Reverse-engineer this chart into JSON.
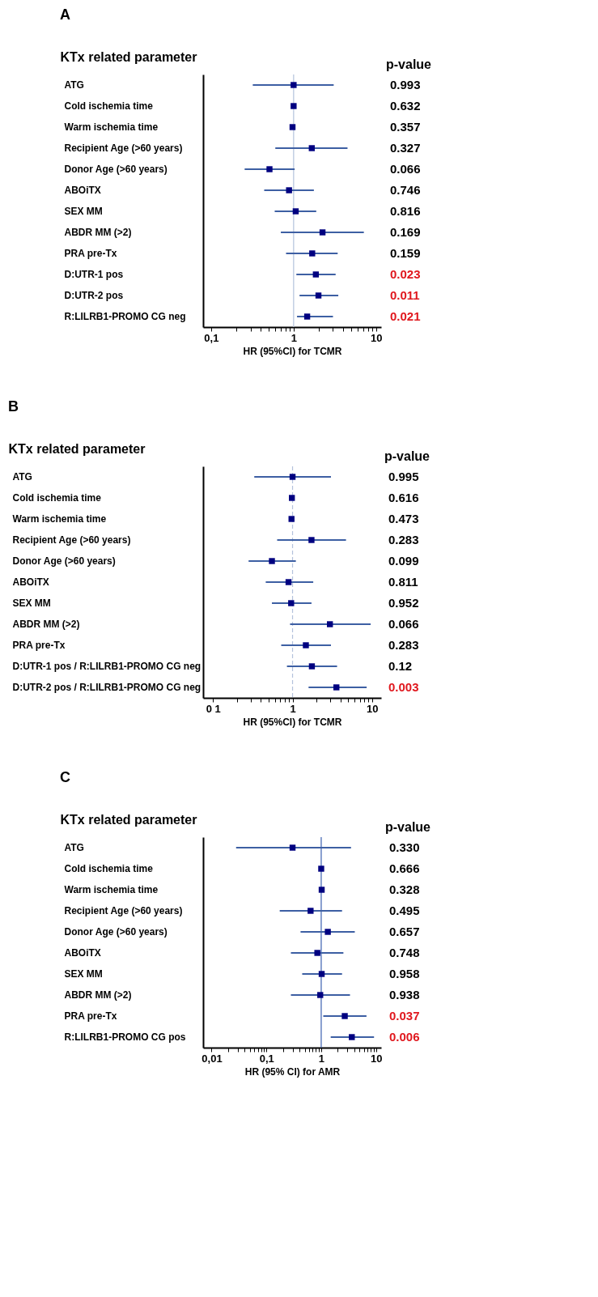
{
  "chart_data": [
    {
      "type": "scatter",
      "title": "A",
      "orientation": "horizontal",
      "log": "x",
      "grid": false,
      "legend": false,
      "marker": "square",
      "categories": [
        "ATG",
        "Cold ischemia time",
        "Warm ischemia time",
        "Recipient Age (>60 years)",
        "Donor Age (>60 years)",
        "ABOiTX",
        "SEX MM",
        "ABDR MM (>2)",
        "PRA pre-Tx",
        "D:UTR-1 pos",
        "D:UTR-2 pos",
        "R:LILRB1-PROMO CG neg"
      ],
      "series": [
        {
          "color": "#000080",
          "values": [
            1.0,
            1.0,
            0.97,
            1.66,
            0.51,
            0.88,
            1.06,
            2.24,
            1.68,
            1.86,
            2.0,
            1.46
          ],
          "errors": [
            [
              0.32,
              3.06
            ],
            null,
            null,
            [
              0.6,
              4.5
            ],
            [
              0.255,
              1.03
            ],
            [
              0.44,
              1.76
            ],
            [
              0.59,
              1.88
            ],
            [
              0.7,
              7.1
            ],
            [
              0.81,
              3.42
            ],
            [
              1.08,
              3.23
            ],
            [
              1.18,
              3.48
            ],
            [
              1.1,
              3.0
            ]
          ]
        }
      ],
      "xlabel": "HR (95%CI) for TCMR",
      "ylabel": "KTx related parameter",
      "y2label": "p-value",
      "xlim": [
        0.08,
        11.5
      ],
      "xticks": [
        {
          "value": 0.1,
          "label": "0,1"
        },
        {
          "value": 0.2,
          "label": null
        },
        {
          "value": 0.3,
          "label": null
        },
        {
          "value": 0.4,
          "label": null
        },
        {
          "value": 0.5,
          "label": null
        },
        {
          "value": 0.6,
          "label": null
        },
        {
          "value": 0.7,
          "label": null
        },
        {
          "value": 0.8,
          "label": null
        },
        {
          "value": 0.9,
          "label": null
        },
        1,
        {
          "value": 2,
          "label": null
        },
        {
          "value": 3,
          "label": null
        },
        {
          "value": 4,
          "label": null
        },
        {
          "value": 5,
          "label": null
        },
        {
          "value": 6,
          "label": null
        },
        {
          "value": 7,
          "label": null
        },
        {
          "value": 8,
          "label": null
        },
        {
          "value": 9,
          "label": null
        },
        10
      ],
      "ref_lines": [
        {
          "axis": "x",
          "value": 1,
          "color": "#b4c2dc"
        }
      ],
      "annotations": [
        "0.993",
        "0.632",
        "0.357",
        "0.327",
        "0.066",
        "0.746",
        "0.816",
        "0.169",
        "0.159",
        "0.023",
        "0.011",
        "0.021"
      ]
    },
    {
      "type": "scatter",
      "title": "B",
      "orientation": "horizontal",
      "log": "x",
      "grid": false,
      "legend": false,
      "marker": "square",
      "categories": [
        "ATG",
        "Cold ischemia time",
        "Warm ischemia time",
        "Recipient Age (>60 years)",
        "Donor Age (>60 years)",
        "ABOiTX",
        "SEX MM",
        "ABDR MM (>2)",
        "PRA pre-Tx",
        "D:UTR-1 pos / R:LILRB1-PROMO CG neg",
        "D:UTR-2 pos / R:LILRB1-PROMO CG neg"
      ],
      "series": [
        {
          "color": "#000080",
          "values": [
            1.0,
            0.98,
            0.97,
            1.73,
            0.55,
            0.89,
            0.96,
            2.95,
            1.47,
            1.75,
            3.56
          ],
          "errors": [
            [
              0.33,
              3.04
            ],
            null,
            null,
            [
              0.64,
              4.7
            ],
            [
              0.28,
              1.1
            ],
            [
              0.46,
              1.82
            ],
            [
              0.55,
              1.73
            ],
            [
              0.93,
              9.6
            ],
            [
              0.72,
              3.04
            ],
            [
              0.85,
              3.63
            ],
            [
              1.59,
              8.55
            ]
          ]
        }
      ],
      "xlabel": "HR (95%CI) for TCMR",
      "ylabel": "KTx related parameter",
      "y2label": "p-value",
      "xlim": [
        0.075,
        13
      ],
      "xticks": [
        {
          "value": 0.1,
          "label": "0 1"
        },
        {
          "value": 0.2,
          "label": null
        },
        {
          "value": 0.3,
          "label": null
        },
        {
          "value": 0.4,
          "label": null
        },
        {
          "value": 0.5,
          "label": null
        },
        {
          "value": 0.6,
          "label": null
        },
        {
          "value": 0.7,
          "label": null
        },
        {
          "value": 0.8,
          "label": null
        },
        {
          "value": 0.9,
          "label": null
        },
        1,
        {
          "value": 2,
          "label": null
        },
        {
          "value": 3,
          "label": null
        },
        {
          "value": 4,
          "label": null
        },
        {
          "value": 5,
          "label": null
        },
        {
          "value": 6,
          "label": null
        },
        {
          "value": 7,
          "label": null
        },
        {
          "value": 8,
          "label": null
        },
        {
          "value": 9,
          "label": null
        },
        10
      ],
      "ref_lines": [
        {
          "axis": "x",
          "value": 1,
          "color": "#b4c2dc",
          "line_style": "dashed"
        }
      ],
      "annotations": [
        "0.995",
        "0.616",
        "0.473",
        "0.283",
        "0.099",
        "0.811",
        "0.952",
        "0.066",
        "0.283",
        "0.12",
        "0.003"
      ]
    },
    {
      "type": "scatter",
      "title": "C",
      "orientation": "horizontal",
      "log": "x",
      "grid": false,
      "legend": false,
      "marker": "square",
      "categories": [
        "ATG",
        "Cold ischemia time",
        "Warm ischemia time",
        "Recipient Age (>60 years)",
        "Donor Age (>60 years)",
        "ABOiTX",
        "SEX MM",
        "ABDR MM (>2)",
        "PRA pre-Tx",
        "R:LILRB1-PROMO CG pos"
      ],
      "series": [
        {
          "color": "#000080",
          "values": [
            0.3,
            1.0,
            1.02,
            0.64,
            1.32,
            0.85,
            1.02,
            0.96,
            2.69,
            3.62
          ],
          "errors": [
            [
              0.028,
              3.5
            ],
            null,
            null,
            [
              0.175,
              2.4
            ],
            [
              0.42,
              4.1
            ],
            [
              0.28,
              2.54
            ],
            [
              0.45,
              2.4
            ],
            [
              0.28,
              3.35
            ],
            [
              1.09,
              6.7
            ],
            [
              1.49,
              9.2
            ]
          ]
        }
      ],
      "xlabel": "HR (95% CI) for AMR",
      "ylabel": "KTx related parameter",
      "y2label": "p-value",
      "xlim": [
        0.007,
        12.4
      ],
      "xticks": [
        {
          "value": 0.01,
          "label": "0,01"
        },
        {
          "value": 0.02,
          "label": null
        },
        {
          "value": 0.03,
          "label": null
        },
        {
          "value": 0.04,
          "label": null
        },
        {
          "value": 0.05,
          "label": null
        },
        {
          "value": 0.06,
          "label": null
        },
        {
          "value": 0.07,
          "label": null
        },
        {
          "value": 0.08,
          "label": null
        },
        {
          "value": 0.09,
          "label": null
        },
        {
          "value": 0.1,
          "label": "0,1"
        },
        {
          "value": 0.2,
          "label": null
        },
        {
          "value": 0.3,
          "label": null
        },
        {
          "value": 0.4,
          "label": null
        },
        {
          "value": 0.5,
          "label": null
        },
        {
          "value": 0.6,
          "label": null
        },
        {
          "value": 0.7,
          "label": null
        },
        {
          "value": 0.8,
          "label": null
        },
        {
          "value": 0.9,
          "label": null
        },
        1,
        {
          "value": 2,
          "label": null
        },
        {
          "value": 3,
          "label": null
        },
        {
          "value": 4,
          "label": null
        },
        {
          "value": 5,
          "label": null
        },
        {
          "value": 6,
          "label": null
        },
        {
          "value": 7,
          "label": null
        },
        {
          "value": 8,
          "label": null
        },
        {
          "value": 9,
          "label": null
        },
        10
      ],
      "ref_lines": [
        {
          "axis": "x",
          "value": 1,
          "color": "#3a5fb0"
        }
      ],
      "annotations": [
        "0.330",
        "0.666",
        "0.328",
        "0.495",
        "0.657",
        "0.748",
        "0.958",
        "0.938",
        "0.037",
        "0.006"
      ]
    }
  ]
}
